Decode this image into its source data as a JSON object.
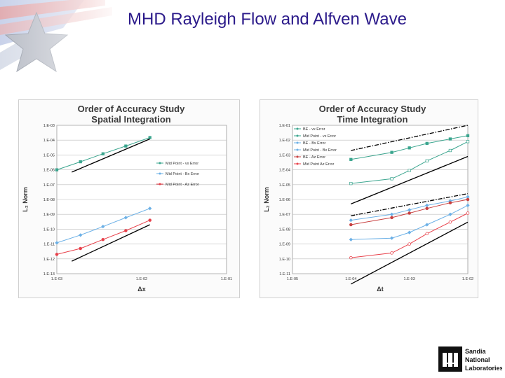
{
  "slide": {
    "title": "MHD Rayleigh Flow and Alfven Wave"
  },
  "logos": {
    "sandia_text": [
      "Sandia",
      "National",
      "Laboratories"
    ]
  },
  "chart_data": [
    {
      "type": "line",
      "title": "Order of Accuracy Study",
      "subtitle": "Spatial Integration",
      "xlabel": "Δx",
      "ylabel": "L₂ Norm",
      "xscale": "log",
      "yscale": "log",
      "xlim": [
        0.001,
        0.1
      ],
      "ylim": [
        1e-13,
        0.001
      ],
      "x_tick_labels": [
        "1.E-03",
        "1.E-02",
        "1.E-01"
      ],
      "y_tick_labels": [
        "1.E-03",
        "1.E-04",
        "1.E-05",
        "1.E-06",
        "1.E-07",
        "1.E-08",
        "1.E-09",
        "1.E-10",
        "1.E-11",
        "1.E-12",
        "1.E-13"
      ],
      "grid": "horizontal",
      "legend_position": "right",
      "series": [
        {
          "name": "Mid Point - vx Error",
          "color": "#3aa58e",
          "marker": "square",
          "style": "solid",
          "x": [
            0.001,
            0.0019,
            0.0035,
            0.0065,
            0.0125
          ],
          "y": [
            1e-06,
            3.5e-06,
            1.2e-05,
            4e-05,
            0.00015
          ]
        },
        {
          "name": "Mid Point - Bx Error",
          "color": "#6bb0e6",
          "marker": "diamond",
          "style": "solid",
          "x": [
            0.001,
            0.0019,
            0.0035,
            0.0065,
            0.0125
          ],
          "y": [
            1.2e-11,
            4e-11,
            1.5e-10,
            6e-10,
            2.5e-09
          ]
        },
        {
          "name": "Mid Point - Az Error",
          "color": "#e8404a",
          "marker": "circle",
          "style": "solid",
          "x": [
            0.001,
            0.0019,
            0.0035,
            0.0065,
            0.0125
          ],
          "y": [
            2e-12,
            5e-12,
            2e-11,
            8e-11,
            4e-10
          ]
        },
        {
          "name": "",
          "color": "#000000",
          "marker": "none",
          "style": "solid",
          "x": [
            0.0015,
            0.0125
          ],
          "y": [
            7e-07,
            0.00012
          ]
        },
        {
          "name": "",
          "color": "#000000",
          "marker": "none",
          "style": "solid",
          "x": [
            0.0015,
            0.0125
          ],
          "y": [
            7e-13,
            2e-10
          ]
        }
      ]
    },
    {
      "type": "line",
      "title": "Order of Accuracy Study",
      "subtitle": "Time Integration",
      "xlabel": "Δt",
      "ylabel": "L₂ Norm",
      "xscale": "log",
      "yscale": "log",
      "xlim": [
        1e-05,
        0.01
      ],
      "ylim": [
        1e-11,
        0.1
      ],
      "x_tick_labels": [
        "1.E-05",
        "1.E-04",
        "1.E-03",
        "1.E-02"
      ],
      "y_tick_labels": [
        "1.E-01",
        "1.E-02",
        "1.E-03",
        "1.E-04",
        "1.E-05",
        "1.E-06",
        "1.E-07",
        "1.E-08",
        "1.E-09",
        "1.E-10",
        "1.E-11"
      ],
      "grid": "horizontal",
      "legend_position": "top-left",
      "series": [
        {
          "name": "BE - vx Error",
          "color": "#3aa58e",
          "marker": "square",
          "style": "solid",
          "x": [
            0.0001,
            0.0005,
            0.001,
            0.002,
            0.005,
            0.01
          ],
          "y": [
            0.0005,
            0.0015,
            0.003,
            0.006,
            0.012,
            0.02
          ]
        },
        {
          "name": "Mid Point - vx Error",
          "color": "#3aa58e",
          "marker": "open-square",
          "style": "solid",
          "x": [
            0.0001,
            0.0005,
            0.001,
            0.002,
            0.005,
            0.01
          ],
          "y": [
            1.2e-05,
            2.5e-05,
            9e-05,
            0.0004,
            0.002,
            0.008
          ]
        },
        {
          "name": "BE - Bx Error",
          "color": "#6bb0e6",
          "marker": "diamond",
          "style": "solid",
          "x": [
            0.0001,
            0.0005,
            0.001,
            0.002,
            0.005,
            0.01
          ],
          "y": [
            4e-08,
            1e-07,
            2e-07,
            4e-07,
            8e-07,
            1.5e-06
          ]
        },
        {
          "name": "Mid Point - Bx Error",
          "color": "#6bb0e6",
          "marker": "diamond",
          "style": "solid",
          "x": [
            0.0001,
            0.0005,
            0.001,
            0.002,
            0.005,
            0.01
          ],
          "y": [
            2e-09,
            2.5e-09,
            6e-09,
            2e-08,
            1e-07,
            4e-07
          ]
        },
        {
          "name": "BE - Az Error",
          "color": "#c84040",
          "marker": "circle",
          "style": "solid",
          "x": [
            0.0001,
            0.0005,
            0.001,
            0.002,
            0.005,
            0.01
          ],
          "y": [
            2e-08,
            6e-08,
            1.2e-07,
            2.5e-07,
            6e-07,
            1e-06
          ]
        },
        {
          "name": "Mid Point Az Error",
          "color": "#e8404a",
          "marker": "open-circle",
          "style": "solid",
          "x": [
            0.0001,
            0.0005,
            0.001,
            0.002,
            0.005,
            0.01
          ],
          "y": [
            1.2e-10,
            2.5e-10,
            1e-09,
            5e-09,
            3e-08,
            1.2e-07
          ]
        },
        {
          "name": "",
          "color": "#000000",
          "marker": "none",
          "style": "dashdot",
          "x": [
            0.0001,
            0.01
          ],
          "y": [
            0.002,
            0.1
          ]
        },
        {
          "name": "",
          "color": "#000000",
          "marker": "none",
          "style": "solid",
          "x": [
            0.0001,
            0.01
          ],
          "y": [
            5e-07,
            0.0008
          ]
        },
        {
          "name": "",
          "color": "#000000",
          "marker": "none",
          "style": "dashdot",
          "x": [
            0.0001,
            0.01
          ],
          "y": [
            8e-08,
            2.5e-06
          ]
        },
        {
          "name": "",
          "color": "#000000",
          "marker": "none",
          "style": "solid",
          "x": [
            0.0001,
            0.01
          ],
          "y": [
            2e-12,
            3e-08
          ]
        }
      ]
    }
  ]
}
